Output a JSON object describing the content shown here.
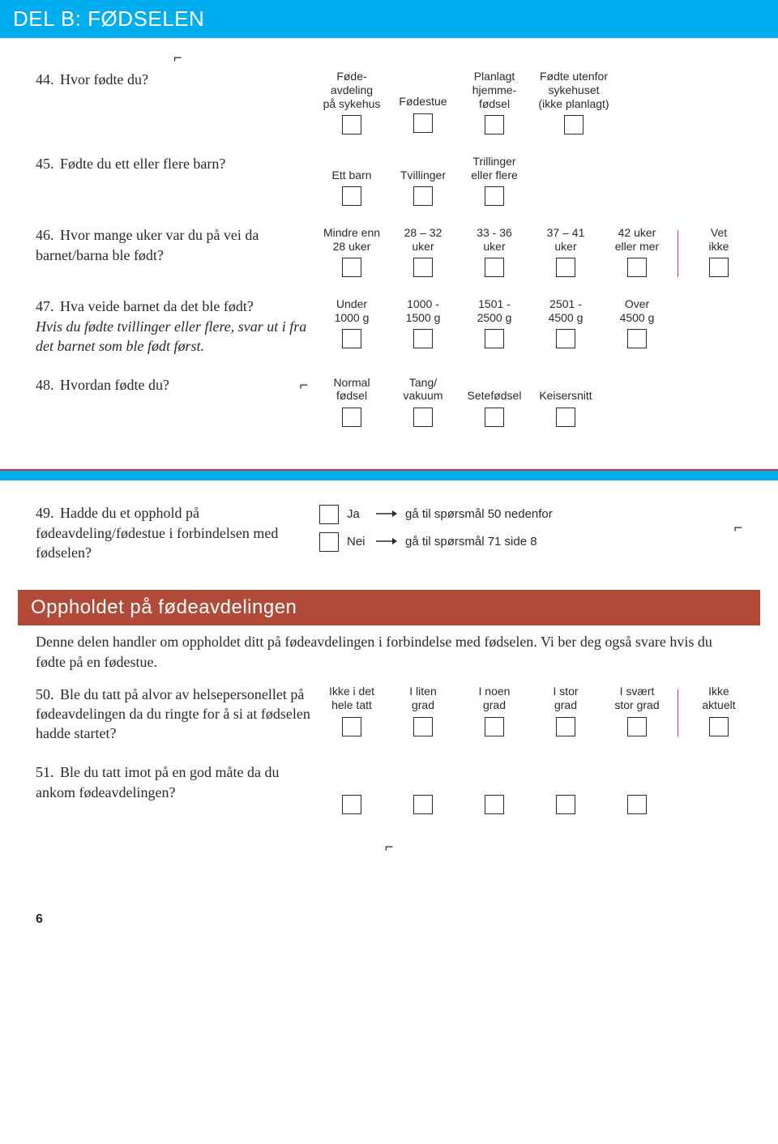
{
  "colors": {
    "blue": "#00aeef",
    "darkred": "#b24a3a",
    "magenta": "#d82e8a",
    "text": "#2a2a2a",
    "white": "#ffffff"
  },
  "section_b_title": "DEL B: FØDSELEN",
  "q44": {
    "num": "44.",
    "text": "Hvor fødte du?",
    "options": [
      "Føde-\navdeling\npå sykehus",
      "Fødestue",
      "Planlagt\nhjemme-\nfødsel",
      "Fødte utenfor\nsykehuset\n(ikke planlagt)"
    ]
  },
  "q45": {
    "num": "45.",
    "text": "Fødte du ett eller flere barn?",
    "options": [
      "Ett barn",
      "Tvillinger",
      "Trillinger\neller flere"
    ]
  },
  "q46": {
    "num": "46.",
    "text": "Hvor mange uker var du på vei da barnet/barna ble født?",
    "options": [
      "Mindre enn\n28 uker",
      "28 – 32\nuker",
      "33 - 36\nuker",
      "37 – 41\nuker",
      "42 uker\neller mer",
      "Vet\nikke"
    ]
  },
  "q47": {
    "num": "47.",
    "text": "Hva veide barnet da det ble født?",
    "italic": "Hvis du fødte tvillinger eller flere, svar ut i fra det barnet som ble født først.",
    "options": [
      "Under\n1000 g",
      "1000 -\n1500 g",
      "1501 -\n2500 g",
      "2501 -\n4500 g",
      "Over\n4500 g"
    ]
  },
  "q48": {
    "num": "48.",
    "text": "Hvordan fødte du?",
    "options": [
      "Normal\nfødsel",
      "Tang/\nvakuum",
      "Setefødsel",
      "Keisersnitt"
    ]
  },
  "q49": {
    "num": "49.",
    "text": "Hadde du et opphold på fødeavdeling/fødestue i forbindelsen med fødselen?",
    "yes": "Ja",
    "no": "Nei",
    "yes_branch": "gå til spørsmål 50 nedenfor",
    "no_branch": "gå til spørsmål 71 side 8"
  },
  "section_stay_title": "Oppholdet på fødeavdelingen",
  "intro": "Denne delen handler om oppholdet ditt på fødeavdelingen i forbindelse med fødselen. Vi ber deg også svare hvis du fødte på en fødestue.",
  "scale": [
    "Ikke i det\nhele tatt",
    "I liten\ngrad",
    "I noen\ngrad",
    "I stor\ngrad",
    "I svært\nstor grad",
    "Ikke\naktuelt"
  ],
  "q50": {
    "num": "50.",
    "text": "Ble du tatt på alvor av helsepersonellet på fødeavdelingen da du ringte for å si at fødselen hadde startet?"
  },
  "q51": {
    "num": "51.",
    "text": "Ble du tatt imot på en god måte da du ankom fødeavdelingen?"
  },
  "page_num": "6"
}
